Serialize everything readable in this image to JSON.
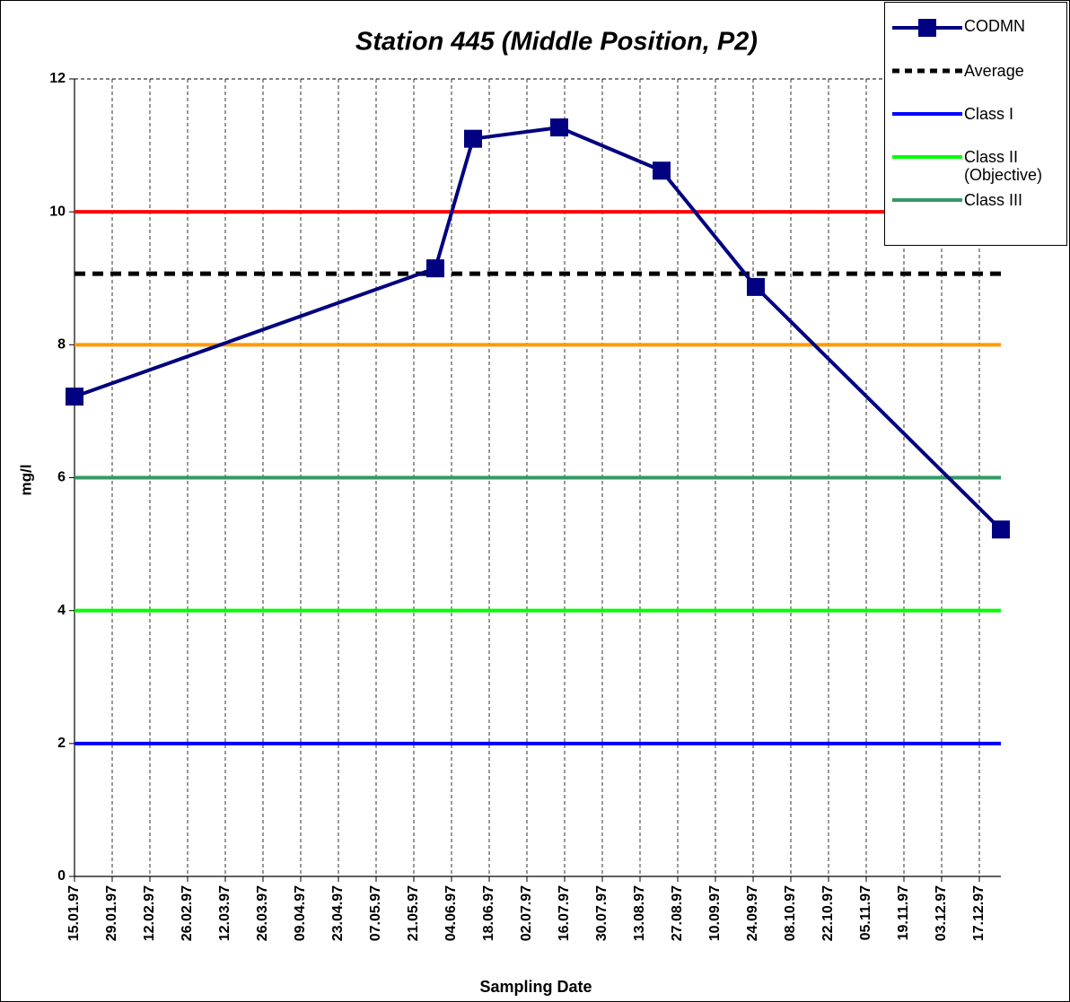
{
  "chart_data": {
    "type": "line",
    "title": "Station 445 (Middle Position, P2)",
    "x_label": "Sampling Date",
    "y_label": "mg/l",
    "x": [
      "1997-01-15",
      "1997-05-29",
      "1997-06-12",
      "1997-07-14",
      "1997-08-21",
      "1997-09-25",
      "1997-12-25"
    ],
    "series": [
      {
        "name": "CODMN",
        "color": "#000080",
        "values": [
          7.22,
          9.15,
          11.1,
          11.27,
          10.62,
          8.87,
          5.22
        ]
      }
    ],
    "reference_lines": [
      {
        "name": "Average",
        "color": "#000000",
        "value": 9.07,
        "dashed": true
      },
      {
        "name": "Class I",
        "color": "#0000ff",
        "value": 2
      },
      {
        "name": "Class II (Objective)",
        "color": "#00ff00",
        "value": 4
      },
      {
        "name": "Class III",
        "color": "#339966",
        "value": 6
      },
      {
        "color": "#ff9900",
        "value": 8
      },
      {
        "color": "#ff0000",
        "value": 10
      }
    ],
    "xlim": [
      "1997-01-15",
      "1997-12-25"
    ],
    "xticks": [
      {
        "value": "1997-01-15",
        "label": "15.01.97"
      },
      {
        "value": "1997-01-29",
        "label": "29.01.97"
      },
      {
        "value": "1997-02-12",
        "label": "12.02.97"
      },
      {
        "value": "1997-02-26",
        "label": "26.02.97"
      },
      {
        "value": "1997-03-12",
        "label": "12.03.97"
      },
      {
        "value": "1997-03-26",
        "label": "26.03.97"
      },
      {
        "value": "1997-04-09",
        "label": "09.04.97"
      },
      {
        "value": "1997-04-23",
        "label": "23.04.97"
      },
      {
        "value": "1997-05-07",
        "label": "07.05.97"
      },
      {
        "value": "1997-05-21",
        "label": "21.05.97"
      },
      {
        "value": "1997-06-04",
        "label": "04.06.97"
      },
      {
        "value": "1997-06-18",
        "label": "18.06.97"
      },
      {
        "value": "1997-07-02",
        "label": "02.07.97"
      },
      {
        "value": "1997-07-16",
        "label": "16.07.97"
      },
      {
        "value": "1997-07-30",
        "label": "30.07.97"
      },
      {
        "value": "1997-08-13",
        "label": "13.08.97"
      },
      {
        "value": "1997-08-27",
        "label": "27.08.97"
      },
      {
        "value": "1997-09-10",
        "label": "10.09.97"
      },
      {
        "value": "1997-09-24",
        "label": "24.09.97"
      },
      {
        "value": "1997-10-08",
        "label": "08.10.97"
      },
      {
        "value": "1997-10-22",
        "label": "22.10.97"
      },
      {
        "value": "1997-11-05",
        "label": "05.11.97"
      },
      {
        "value": "1997-11-19",
        "label": "19.11.97"
      },
      {
        "value": "1997-12-03",
        "label": "03.12.97"
      },
      {
        "value": "1997-12-17",
        "label": "17.12.97"
      }
    ],
    "ylim": [
      0,
      12
    ],
    "yticks": [
      0,
      2,
      4,
      6,
      8,
      10,
      12
    ],
    "grid": "x",
    "legend": "top-right"
  }
}
